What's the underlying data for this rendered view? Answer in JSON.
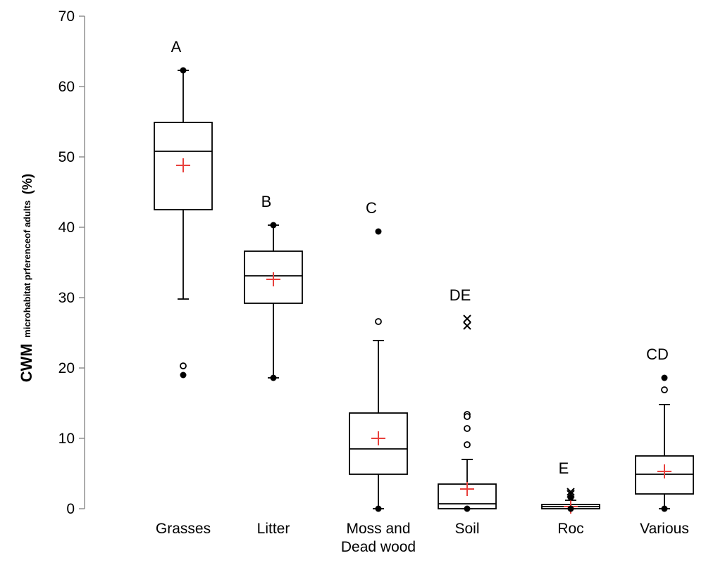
{
  "chart_data": {
    "type": "box",
    "ylabel_main": "CWM",
    "ylabel_sub": "microhabitat prferenceof adults",
    "ylabel_unit": "(%)",
    "ylim": [
      0,
      70
    ],
    "yticks": [
      "0",
      "10",
      "20",
      "30",
      "40",
      "50",
      "60",
      "70"
    ],
    "mean_color": "#e8403c",
    "boxes": [
      {
        "category_lines": [
          "Grasses"
        ],
        "letter": "A",
        "whisker_low": 29.8,
        "q1": 42.5,
        "median": 50.8,
        "q3": 54.9,
        "whisker_high": 62.3,
        "mean": 48.8,
        "outliers": [
          {
            "value": 20.3,
            "marker": "open-circle"
          },
          {
            "value": 19.0,
            "marker": "filled-circle"
          },
          {
            "value": 62.3,
            "marker": "filled-circle"
          }
        ]
      },
      {
        "category_lines": [
          "Litter"
        ],
        "letter": "B",
        "whisker_low": 18.6,
        "q1": 29.2,
        "median": 33.1,
        "q3": 36.6,
        "whisker_high": 40.3,
        "mean": 32.6,
        "outliers": [
          {
            "value": 40.3,
            "marker": "filled-circle"
          },
          {
            "value": 18.6,
            "marker": "filled-circle"
          }
        ]
      },
      {
        "category_lines": [
          "Moss and",
          "Dead wood"
        ],
        "letter": "C",
        "whisker_low": 0.0,
        "q1": 4.9,
        "median": 8.5,
        "q3": 13.6,
        "whisker_high": 23.9,
        "mean": 10.0,
        "outliers": [
          {
            "value": 39.4,
            "marker": "filled-circle"
          },
          {
            "value": 26.6,
            "marker": "open-circle"
          },
          {
            "value": 0.0,
            "marker": "filled-circle"
          }
        ]
      },
      {
        "category_lines": [
          "Soil"
        ],
        "letter": "DE",
        "whisker_low": 0.0,
        "q1": 0.0,
        "median": 0.7,
        "q3": 3.5,
        "whisker_high": 7.0,
        "mean": 2.8,
        "outliers": [
          {
            "value": 27.0,
            "marker": "x"
          },
          {
            "value": 26.0,
            "marker": "x"
          },
          {
            "value": 13.4,
            "marker": "open-circle"
          },
          {
            "value": 13.1,
            "marker": "open-circle"
          },
          {
            "value": 11.4,
            "marker": "open-circle"
          },
          {
            "value": 9.1,
            "marker": "open-circle"
          },
          {
            "value": 0.0,
            "marker": "filled-circle"
          }
        ]
      },
      {
        "category_lines": [
          "Roc"
        ],
        "letter": "E",
        "whisker_low": 0.0,
        "q1": 0.0,
        "median": 0.3,
        "q3": 0.6,
        "whisker_high": 1.2,
        "mean": 0.3,
        "outliers": [
          {
            "value": 2.4,
            "marker": "x"
          },
          {
            "value": 2.1,
            "marker": "x"
          },
          {
            "value": 1.6,
            "marker": "filled-circle"
          },
          {
            "value": 0.0,
            "marker": "filled-circle"
          }
        ]
      },
      {
        "category_lines": [
          "Various"
        ],
        "letter": "CD",
        "whisker_low": 0.0,
        "q1": 2.1,
        "median": 4.9,
        "q3": 7.5,
        "whisker_high": 14.8,
        "mean": 5.3,
        "outliers": [
          {
            "value": 18.6,
            "marker": "filled-circle"
          },
          {
            "value": 16.9,
            "marker": "open-circle"
          },
          {
            "value": 0.0,
            "marker": "filled-circle"
          }
        ]
      }
    ]
  }
}
